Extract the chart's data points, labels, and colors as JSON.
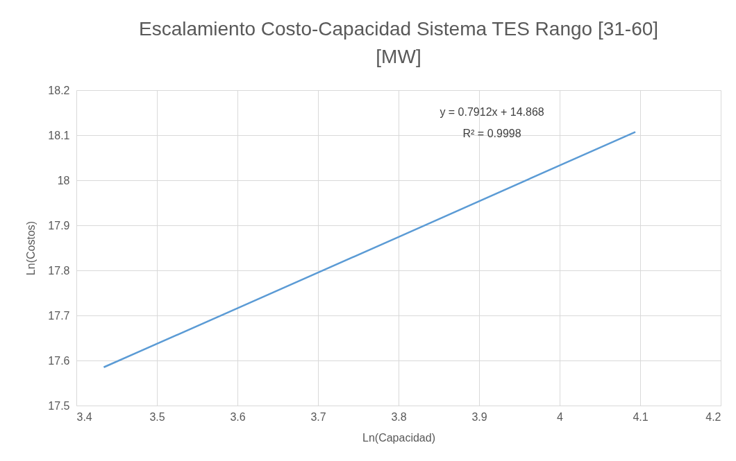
{
  "chart_data": {
    "type": "line",
    "title": "Escalamiento Costo-Capacidad Sistema TES Rango [31-60] [MW]",
    "xlabel": "Ln(Capacidad)",
    "ylabel": "Ln(Costos)",
    "x": [
      3.434,
      3.6,
      3.8,
      4.0,
      4.094
    ],
    "series": [
      {
        "color": "#5b9bd5",
        "values": [
          17.585,
          17.716,
          17.874,
          18.033,
          18.107
        ]
      }
    ],
    "xlim": [
      3.4,
      4.2
    ],
    "xticks": [
      3.4,
      3.5,
      3.6,
      3.7,
      3.8,
      3.9,
      {
        "value": 4,
        "label": "4"
      },
      4.1,
      4.2
    ],
    "ylim": [
      17.5,
      18.2
    ],
    "yticks": [
      17.5,
      17.6,
      17.7,
      17.8,
      17.9,
      {
        "value": 18,
        "label": "18"
      },
      18.1,
      18.2
    ],
    "grid": true,
    "legend": false,
    "marker": "none",
    "line_style": "solid",
    "annotations": [
      "y = 0.7912x + 14.868",
      "R² = 0.9998"
    ]
  }
}
